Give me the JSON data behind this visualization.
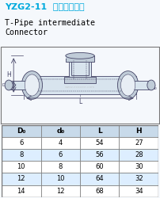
{
  "title1": "YZG2-11  三通中間接頭",
  "title2": "T-Pipe intermediate\nConnector",
  "title1_color": "#00AADD",
  "title2_color": "#000000",
  "bg_color": "#f5f8fc",
  "table_header": [
    "D₀",
    "d₀",
    "L",
    "H"
  ],
  "table_data": [
    [
      6,
      4,
      54,
      27
    ],
    [
      8,
      6,
      56,
      28
    ],
    [
      10,
      8,
      60,
      30
    ],
    [
      12,
      10,
      64,
      32
    ],
    [
      14,
      12,
      68,
      34
    ]
  ],
  "header_color": "#c8daea",
  "row_even_color": "#ddeeff",
  "row_odd_color": "#ffffff",
  "border_color": "#888888",
  "line_color": "#444466",
  "body_color": "#d8e4ee",
  "fitting_color": "#c0ccd8",
  "dim_color": "#333355"
}
